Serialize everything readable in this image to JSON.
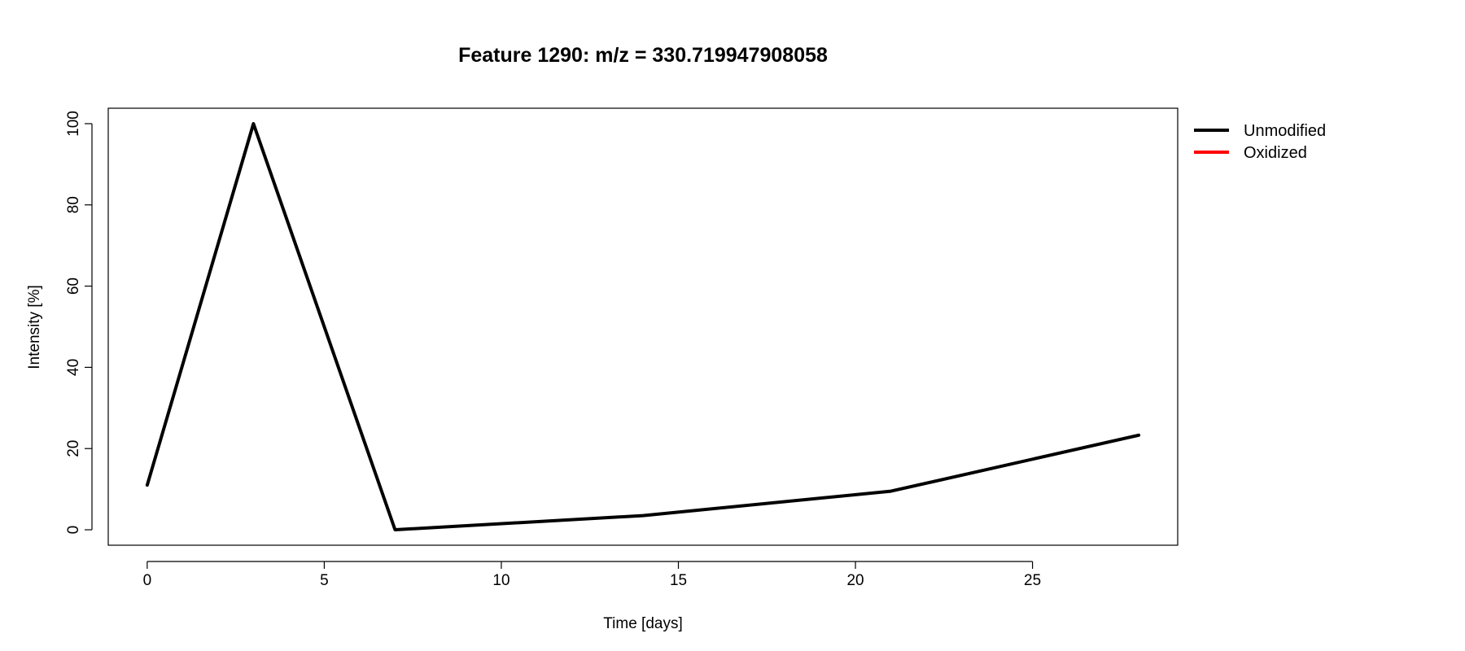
{
  "chart_data": {
    "type": "line",
    "title": "Feature 1290: m/z = 330.719947908058",
    "xlabel": "Time [days]",
    "ylabel": "Intensity [%]",
    "xlim": [
      -1.1,
      29.1
    ],
    "ylim": [
      -3.8,
      103.8
    ],
    "x_ticks": [
      0,
      5,
      10,
      15,
      20,
      25
    ],
    "y_ticks": [
      0,
      20,
      40,
      60,
      80,
      100
    ],
    "grid": false,
    "legend_position": "outside-top-right",
    "series": [
      {
        "name": "Unmodified",
        "color": "#000000",
        "x": [
          0,
          3,
          7,
          14,
          21,
          28
        ],
        "y": [
          11,
          100,
          0,
          3.5,
          9.5,
          23.3
        ]
      },
      {
        "name": "Oxidized",
        "color": "#ff0000",
        "x": [],
        "y": []
      }
    ]
  }
}
